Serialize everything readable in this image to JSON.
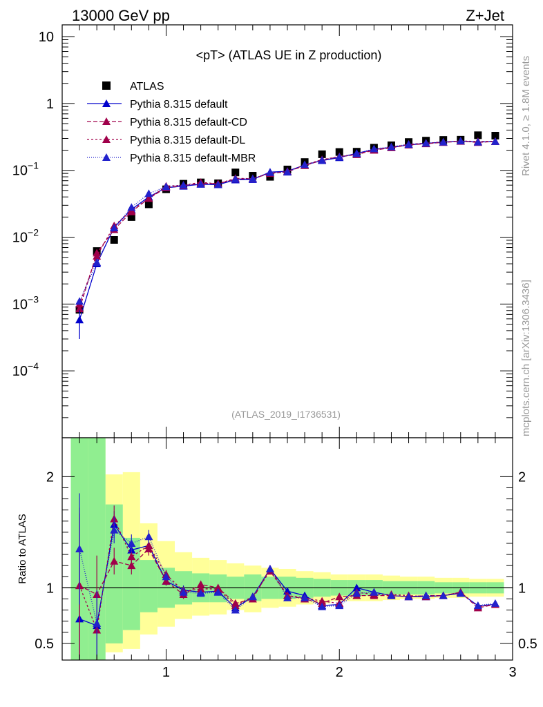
{
  "header": {
    "left": "13000 GeV pp",
    "right": "Z+Jet"
  },
  "side_labels": {
    "rivet": "Rivet 4.1.0, ≥ 1.8M events",
    "mcplots": "mcplots.cern.ch [arXiv:1306.3436]"
  },
  "chart_data": {
    "type": "scatter",
    "title": "<pT> (ATLAS UE in Z production)",
    "analysis_id": "(ATLAS_2019_I1736531)",
    "xlim": [
      0.4,
      3.0
    ],
    "x_ticks": [
      "1",
      "2",
      "3"
    ],
    "main": {
      "ylim": [
        1e-05,
        15
      ],
      "yscale": "log",
      "y_ticks": [
        {
          "value": 10,
          "base": "10",
          "exp": ""
        },
        {
          "value": 1,
          "base": "1",
          "exp": ""
        },
        {
          "value": 0.1,
          "base": "10",
          "exp": "−1"
        },
        {
          "value": 0.01,
          "base": "10",
          "exp": "−2"
        },
        {
          "value": 0.001,
          "base": "10",
          "exp": "−3"
        },
        {
          "value": 0.0001,
          "base": "10",
          "exp": "−4"
        }
      ],
      "series": [
        {
          "name": "ATLAS",
          "marker": "square",
          "color": "#000000",
          "x": [
            0.5,
            0.6,
            0.7,
            0.8,
            0.9,
            1.0,
            1.1,
            1.2,
            1.3,
            1.4,
            1.5,
            1.6,
            1.7,
            1.8,
            1.9,
            2.0,
            2.1,
            2.2,
            2.3,
            2.4,
            2.5,
            2.6,
            2.7,
            2.8,
            2.9
          ],
          "y": [
            0.00082,
            0.0062,
            0.0091,
            0.02,
            0.031,
            0.052,
            0.063,
            0.066,
            0.064,
            0.093,
            0.083,
            0.08,
            0.103,
            0.133,
            0.174,
            0.188,
            0.19,
            0.218,
            0.237,
            0.265,
            0.278,
            0.285,
            0.287,
            0.335,
            0.33
          ]
        },
        {
          "name": "Pythia 8.315 default",
          "marker": "triangle",
          "color": "#0000cc",
          "dash": "",
          "y": [
            0.00058,
            0.004,
            0.014,
            0.026,
            0.04,
            0.055,
            0.058,
            0.062,
            0.061,
            0.072,
            0.073,
            0.094,
            0.097,
            0.12,
            0.14,
            0.155,
            0.18,
            0.205,
            0.22,
            0.24,
            0.252,
            0.265,
            0.273,
            0.265,
            0.27
          ]
        },
        {
          "name": "Pythia 8.315 default-CD",
          "marker": "triangle",
          "color": "#a0004a",
          "dash": "6,3",
          "y": [
            0.00085,
            0.0058,
            0.013,
            0.024,
            0.038,
            0.055,
            0.059,
            0.064,
            0.063,
            0.074,
            0.075,
            0.09,
            0.095,
            0.118,
            0.142,
            0.16,
            0.172,
            0.2,
            0.218,
            0.24,
            0.25,
            0.262,
            0.272,
            0.262,
            0.27
          ]
        },
        {
          "name": "Pythia 8.315 default-DL",
          "marker": "triangle",
          "color": "#a0004a",
          "dash": "3,3",
          "y": [
            0.001,
            0.0052,
            0.0148,
            0.025,
            0.038,
            0.058,
            0.06,
            0.066,
            0.063,
            0.076,
            0.075,
            0.091,
            0.096,
            0.12,
            0.145,
            0.16,
            0.175,
            0.205,
            0.222,
            0.245,
            0.255,
            0.265,
            0.275,
            0.27,
            0.272
          ]
        },
        {
          "name": "Pythia 8.315 default-MBR",
          "marker": "triangle",
          "color": "#2222cc",
          "dash": "1,2",
          "y": [
            0.0011,
            0.0042,
            0.0138,
            0.028,
            0.045,
            0.057,
            0.06,
            0.062,
            0.061,
            0.074,
            0.075,
            0.093,
            0.094,
            0.122,
            0.142,
            0.158,
            0.178,
            0.21,
            0.225,
            0.245,
            0.255,
            0.265,
            0.275,
            0.265,
            0.27
          ]
        }
      ]
    },
    "ratio": {
      "ylabel": "Ratio to ATLAS",
      "ylim": [
        0.35,
        2.35
      ],
      "y_ticks": [
        "0.5",
        "1",
        "2"
      ],
      "band_edges": [
        0.45,
        0.55,
        0.65,
        0.75,
        0.85,
        0.95,
        1.05,
        1.15,
        1.25,
        1.35,
        1.45,
        1.55,
        1.65,
        1.75,
        1.85,
        1.95,
        2.05,
        2.15,
        2.25,
        2.35,
        2.45,
        2.55,
        2.65,
        2.75,
        2.85,
        2.95
      ],
      "band_inner": [
        [
          0.35,
          2.35
        ],
        [
          0.35,
          2.35
        ],
        [
          0.5,
          1.75
        ],
        [
          0.62,
          1.45
        ],
        [
          0.78,
          1.25
        ],
        [
          0.82,
          1.18
        ],
        [
          0.85,
          1.15
        ],
        [
          0.87,
          1.13
        ],
        [
          0.87,
          1.12
        ],
        [
          0.9,
          1.1
        ],
        [
          0.88,
          1.12
        ],
        [
          0.9,
          1.1
        ],
        [
          0.9,
          1.1
        ],
        [
          0.91,
          1.09
        ],
        [
          0.92,
          1.08
        ],
        [
          0.93,
          1.07
        ],
        [
          0.93,
          1.07
        ],
        [
          0.93,
          1.07
        ],
        [
          0.94,
          1.06
        ],
        [
          0.94,
          1.06
        ],
        [
          0.94,
          1.06
        ],
        [
          0.95,
          1.05
        ],
        [
          0.95,
          1.05
        ],
        [
          0.95,
          1.05
        ],
        [
          0.95,
          1.05
        ]
      ],
      "band_outer": [
        [
          0.35,
          2.35
        ],
        [
          0.35,
          2.35
        ],
        [
          0.42,
          2.02
        ],
        [
          0.45,
          2.04
        ],
        [
          0.58,
          1.58
        ],
        [
          0.65,
          1.42
        ],
        [
          0.72,
          1.32
        ],
        [
          0.75,
          1.27
        ],
        [
          0.76,
          1.25
        ],
        [
          0.8,
          1.22
        ],
        [
          0.78,
          1.2
        ],
        [
          0.82,
          1.18
        ],
        [
          0.83,
          1.17
        ],
        [
          0.85,
          1.15
        ],
        [
          0.86,
          1.14
        ],
        [
          0.88,
          1.12
        ],
        [
          0.88,
          1.12
        ],
        [
          0.88,
          1.12
        ],
        [
          0.89,
          1.11
        ],
        [
          0.9,
          1.1
        ],
        [
          0.9,
          1.1
        ],
        [
          0.91,
          1.09
        ],
        [
          0.91,
          1.09
        ],
        [
          0.92,
          1.08
        ],
        [
          0.92,
          1.08
        ]
      ],
      "series": [
        {
          "name": "Pythia 8.315 default",
          "y": [
            0.72,
            0.66,
            1.57,
            1.34,
            1.38,
            1.06,
            0.98,
            0.96,
            0.97,
            0.82,
            0.92,
            1.17,
            0.97,
            0.93,
            0.84,
            0.85,
            1.0,
            0.96,
            0.93,
            0.92,
            0.92,
            0.93,
            0.95,
            0.84,
            0.85
          ],
          "err": [
            0.6,
            0.3,
            0.12,
            0.08,
            0.06,
            0.04,
            0.04,
            0.03,
            0.03,
            0.03,
            0.03,
            0.03,
            0.03,
            0.02,
            0.02,
            0.02,
            0.02,
            0.02,
            0.02,
            0.02,
            0.02,
            0.02,
            0.02,
            0.02,
            0.02
          ]
        },
        {
          "name": "Pythia 8.315 default-CD",
          "y": [
            1.02,
            0.94,
            1.24,
            1.2,
            1.35,
            1.06,
            0.94,
            1.03,
            1.0,
            0.86,
            0.9,
            1.17,
            0.93,
            0.9,
            0.86,
            0.92,
            0.93,
            0.93,
            0.93,
            0.92,
            0.93,
            0.93,
            0.96,
            0.82,
            0.85
          ],
          "err": [
            0.7,
            0.35,
            0.12,
            0.08,
            0.06,
            0.04,
            0.04,
            0.03,
            0.03,
            0.03,
            0.03,
            0.03,
            0.03,
            0.02,
            0.02,
            0.02,
            0.02,
            0.02,
            0.02,
            0.02,
            0.02,
            0.02,
            0.02,
            0.02,
            0.02
          ]
        },
        {
          "name": "Pythia 8.315 default-DL",
          "y": [
            1.02,
            0.62,
            1.62,
            1.28,
            1.38,
            1.12,
            0.97,
            0.99,
            0.99,
            0.84,
            0.92,
            1.15,
            0.93,
            0.91,
            0.88,
            0.86,
            0.96,
            0.94,
            0.94,
            0.93,
            0.92,
            0.93,
            0.96,
            0.83,
            0.85
          ],
          "err": [
            0.65,
            0.3,
            0.12,
            0.08,
            0.06,
            0.04,
            0.04,
            0.03,
            0.03,
            0.03,
            0.03,
            0.03,
            0.03,
            0.02,
            0.02,
            0.02,
            0.02,
            0.02,
            0.02,
            0.02,
            0.02,
            0.02,
            0.02,
            0.02,
            0.02
          ]
        },
        {
          "name": "Pythia 8.315 default-MBR",
          "y": [
            1.35,
            0.68,
            1.52,
            1.4,
            1.46,
            1.1,
            0.96,
            0.95,
            0.96,
            0.8,
            0.92,
            1.17,
            0.91,
            0.91,
            0.83,
            0.84,
            0.95,
            0.96,
            0.93,
            0.92,
            0.93,
            0.93,
            0.95,
            0.84,
            0.86
          ],
          "err": [
            0.5,
            0.3,
            0.12,
            0.08,
            0.06,
            0.04,
            0.04,
            0.03,
            0.03,
            0.03,
            0.03,
            0.03,
            0.03,
            0.02,
            0.02,
            0.02,
            0.02,
            0.02,
            0.02,
            0.02,
            0.02,
            0.02,
            0.02,
            0.02,
            0.02
          ]
        }
      ]
    },
    "colors": {
      "band_inner": "#90ee90",
      "band_outer": "#ffff99"
    }
  }
}
